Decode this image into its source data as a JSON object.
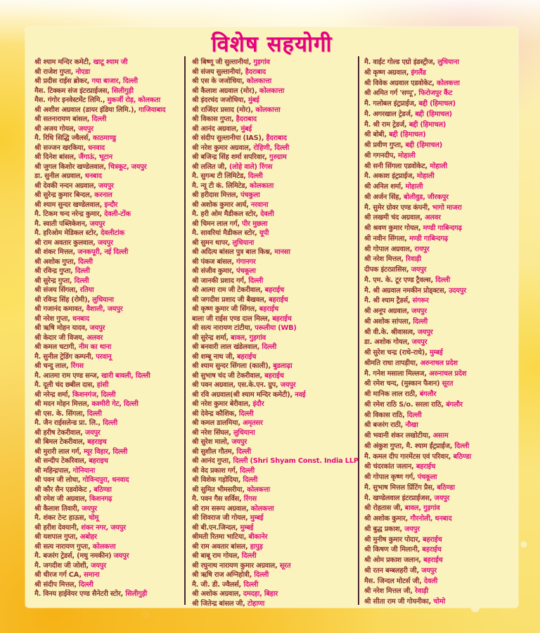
{
  "title": "विशेष सहयोगी",
  "colors": {
    "title_pink": "#e6007e",
    "name_maroon": "#8e3133",
    "place_pink": "#e00f7d",
    "panel_bg": "#fbf3bd",
    "divider": "#4a2430"
  },
  "columns": [
    {
      "entries": [
        {
          "n": "श्री श्याम मन्दिर कमेटी,",
          "p": "खाटू श्याम जी"
        },
        {
          "n": "श्री राजेश गुप्ता,",
          "p": "नोएडा"
        },
        {
          "n": "श्री प्रदीस राईस ब्रोकर,",
          "p": "गया बाजार, दिल्ली"
        },
        {
          "n": "मैस. टिक्कम संज इंटरप्राईजस,",
          "p": "सिलीगुड़ी"
        },
        {
          "n": "मैस. गंगोर इनवेस्टमेंट लिमि.,",
          "p": "मुकर्जी रोड़, कोलकता"
        },
        {
          "n": "श्री अशीश अग्रवाल (डायर इंडिया लिमि.),",
          "p": "गाजियाबाद"
        },
        {
          "n": "श्री सतनारायण बांसल,",
          "p": "दिल्ली"
        },
        {
          "n": "श्री अजय गोयल,",
          "p": "जयपुर"
        },
        {
          "n": "मै. रिधि सिद्धि ज्वैलर्स,",
          "p": "काठमाण्डु"
        },
        {
          "n": "श्री सज्जन खरकिया,",
          "p": "धनवाद"
        },
        {
          "n": "श्री दिनेश बांसल,",
          "p": "जैंगाऊं, भूटान"
        },
        {
          "n": "श्री जुगल किशोर खण्डेलवाल,",
          "p": "चित्रकूट, जयपुर"
        },
        {
          "n": "डा. सुनील अग्रवाल,",
          "p": "धनबाद"
        },
        {
          "n": "श्री देवकी नन्दन अग्रवाल,",
          "p": "जयपुर"
        },
        {
          "n": "श्री सुरेन्द्र कुमार बिन्दल,",
          "p": "करनाल"
        },
        {
          "n": "श्री श्याम सुन्दर खण्डेलवाल,",
          "p": "इन्दौर"
        },
        {
          "n": "मै. टिकम चन्द नरेन्द्र कुमार,",
          "p": "देवली-टोंक"
        },
        {
          "n": "मै. स्वाती पब्लिकेशन,",
          "p": "जयपुर"
        },
        {
          "n": "मै. हरिओम मेडिकल स्टोर,",
          "p": "देवलीटांक"
        },
        {
          "n": "श्री राम अवतार कुलवाल,",
          "p": "जयपुर"
        },
        {
          "n": "श्री शंकर मित्तल,",
          "p": "जनकपूरी, नई दिल्ली"
        },
        {
          "n": "श्री अशोक गुप्ता,",
          "p": "दिल्ली"
        },
        {
          "n": "श्री रविन्द्र गुप्ता,",
          "p": "दिल्ली"
        },
        {
          "n": "श्री सुरेन्द्र गुप्ता,",
          "p": "दिल्ली"
        },
        {
          "n": "श्री संजय सिंगला,",
          "p": "रतिया"
        },
        {
          "n": "श्री रविन्द्र सिंह (रोमी),",
          "p": "लुधियाना"
        },
        {
          "n": "श्री गजानंद कमावत,",
          "p": "वैशाली, जयपुर"
        },
        {
          "n": "श्री नरेश गुप्ता,",
          "p": "धनबाद"
        },
        {
          "n": "श्री ऋषि मोहन यादव,",
          "p": "जयपुर"
        },
        {
          "n": "श्री केदार जी विजय,",
          "p": "अलवर"
        },
        {
          "n": "श्री कमल चटागी,",
          "p": "नीम का थाना"
        },
        {
          "n": "मै. सुनील ट्रेडिंग कम्पनी,",
          "p": "परवानू"
        },
        {
          "n": "श्री चन्दु लाल,",
          "p": "रिंगस"
        },
        {
          "n": "मै. आतमा राम एण्ड सन्ज,",
          "p": "खारी बावली, दिल्ली"
        },
        {
          "n": "मै. दूली चंद छबील दास,",
          "p": "हांसी"
        },
        {
          "n": "श्री नरेन्द्र शर्मा,",
          "p": "किशनगंज, दिल्ली"
        },
        {
          "n": "श्री मदन मोहन मित्तल,",
          "p": "कश्मीरी गेट, दिल्ली"
        },
        {
          "n": "श्री एस. के. सिंगला,",
          "p": "दिल्ली"
        },
        {
          "n": "मै. जैन राईसलेन्ड प्रा. लि.,",
          "p": "दिल्ली"
        },
        {
          "n": "श्री हरीष टेकरीवाल,",
          "p": "जयपुर"
        },
        {
          "n": "श्री बिमल टेकरीवाल,",
          "p": "बहराइच"
        },
        {
          "n": "श्री मुरारी लाल गर्ग,",
          "p": "म्यूर विहार, दिल्ली"
        },
        {
          "n": "श्री सन्दीप टेकरिवाल,",
          "p": "बहराइच"
        },
        {
          "n": "श्री महिन्द्रपाल,",
          "p": "गोनियाना"
        },
        {
          "n": "श्री पवन जी लोधा,",
          "p": "गोविन्दपुरा, धनवाद"
        },
        {
          "n": "श्री कौर सैन एडवोकेट ,",
          "p": "बठिण्डा"
        },
        {
          "n": "श्री रमेश जी अग्रवाल,",
          "p": "किशनगढ़"
        },
        {
          "n": "श्री कैलाश तिवारी,",
          "p": "जयपुर"
        },
        {
          "n": "मै. शंकर टेन्ट हाऊस,",
          "p": "चोमू"
        },
        {
          "n": "श्री हरीश देवयानी,",
          "p": "शंकर नगर, जयपुर"
        },
        {
          "n": "श्री यशपाल गुप्ता,",
          "p": "अबोहर"
        },
        {
          "n": "श्री सत्य नारायण गुप्ता,",
          "p": "कोलकत्ता"
        },
        {
          "n": "मै. बजरंग ट्रेडर्स, (मधु नमकीन)",
          "p": "जयपुर"
        },
        {
          "n": "मै. जगदीश जी जोशी,",
          "p": "जयपुर"
        },
        {
          "n": "श्री धीरज गर्ग CA,",
          "p": "समाना"
        },
        {
          "n": "श्री संदीप मित्तल,",
          "p": "दिल्ली"
        },
        {
          "n": "मै. विनय हाईवेयर एण्ड सैनेटरी स्टोर,",
          "p": "सिलीगुड़ी"
        }
      ]
    },
    {
      "entries": [
        {
          "n": "श्री बिष्णू जी सुल्तानीयां,",
          "p": "गुड़गांव"
        },
        {
          "n": "श्री संजय सुल्तानीयां,",
          "p": "हैदराबाद"
        },
        {
          "n": "श्री एस के जजोधिया,",
          "p": "कोलकात्ता"
        },
        {
          "n": "श्री कैलाश अग्रवाल (मोर),",
          "p": "कोलकात्ता"
        },
        {
          "n": "श्री इंदरचंद जजोधिया,",
          "p": "मुंबई"
        },
        {
          "n": "श्री राजिंदर प्रसाद (मोर),",
          "p": "कोलकात्ता"
        },
        {
          "n": "श्री विकास गुप्ता,",
          "p": "हैदराबाद"
        },
        {
          "n": "श्री आनंद अग्रवाल,",
          "p": "मुंबई"
        },
        {
          "n": "श्री संदीप सुल्तानीया (IAS),",
          "p": "हैदराबाद"
        },
        {
          "n": "श्री नरेश कुमार अग्रवाल,",
          "p": "रोहिणी, दिल्ली"
        },
        {
          "n": "श्री बजिन्द्र सिंह शर्मा सपरिवार,",
          "p": "गुरुग्राम"
        },
        {
          "n": "श्री ललित जी,",
          "p": "(लोहे वाले) रिंगस"
        },
        {
          "n": "मै. सुगन्ध टी लिमिटेड,",
          "p": "दिल्ली"
        },
        {
          "n": "मै. न्यू टी कं. लिमिटेड,",
          "p": "कोलकाता"
        },
        {
          "n": "श्री हरीदास मित्तल,",
          "p": "पंचकुला"
        },
        {
          "n": "श्री अशोक कुमार आर्य,",
          "p": "नरवाना"
        },
        {
          "n": "मै. हरी ओम मैडीकल स्टोर,",
          "p": "देवली"
        },
        {
          "n": "श्री चिमन लाल गर्ग,",
          "p": "पीर मुछला"
        },
        {
          "n": "मै. सावरियां मैडीकल स्टोर,",
          "p": "यूपी"
        },
        {
          "n": "श्री सुमन थापर,",
          "p": "लुधियाना"
        },
        {
          "n": "श्री अदित्य बांसल पुत्र बाल किश्न,",
          "p": "मानसा"
        },
        {
          "n": "श्री पंकज बांसल,",
          "p": "गंगानगर"
        },
        {
          "n": "श्री संजीव कुमार,",
          "p": "पंचकूला"
        },
        {
          "n": "श्री जानकी प्रशाद गर्ग,",
          "p": "दिल्ली"
        },
        {
          "n": "श्री आत्मा राम जी टेकरीवाल,",
          "p": "बहराईच"
        },
        {
          "n": "श्री जगदीश प्रशाद जी बैखवल,",
          "p": "बहराईच"
        },
        {
          "n": "श्री कृष्ण कुमार जी सिंगल,",
          "p": "बहराईच"
        },
        {
          "n": "बाला जी राईस एण्ड दाल मिल्ल,",
          "p": "बहराईच"
        },
        {
          "n": "श्री सत्य नारायण टांटीया,",
          "p": "परूलीया (WB)"
        },
        {
          "n": "श्री सुरेन्द्र शर्मा,",
          "p": "बावल, गुड़गांव"
        },
        {
          "n": "श्री बनवारी लाल खंडेलवाल,",
          "p": "दिल्ली"
        },
        {
          "n": "श्री शम्बू नाथ जी,",
          "p": "बहराईच"
        },
        {
          "n": "श्री श्याम सुन्दर सिंगला (काली),",
          "p": "बुडलाढ़ा"
        },
        {
          "n": "श्री सुभाष चंद जी टेकरीवाल,",
          "p": "बहराईच"
        },
        {
          "n": "श्री पवन अग्रवाल, एस.के.एन. ग्रुप,",
          "p": "जयपुर"
        },
        {
          "n": "श्री रवि अग्रवाल(श्री श्याम मन्दिर कमेटी),",
          "p": "नवई"
        },
        {
          "n": "श्री नरेश कुमार बेरीवाल,",
          "p": "इंदौर"
        },
        {
          "n": "श्री देवेन्द्र कौशिक,",
          "p": "दिल्ली"
        },
        {
          "n": "श्री कमल डालमिया,",
          "p": "अमृतसर"
        },
        {
          "n": "श्री नरेश सिंघल,",
          "p": "लुधियाना"
        },
        {
          "n": "श्री सुरेश मालो,",
          "p": "जयपुर"
        },
        {
          "n": "श्री सुशील गौतम,",
          "p": "दिल्ली"
        },
        {
          "n": "श्री आनंद गुप्ता,",
          "p": "दिल्ली (Shri Shyam Const. India LLP)"
        },
        {
          "n": "श्री वेद प्रकाश गर्ग,",
          "p": "दिल्ली"
        },
        {
          "n": "श्री विशेक गड़ोदिया,",
          "p": "दिल्ली"
        },
        {
          "n": "श्री सुमित भीमसरीया,",
          "p": "कोलकत्ता"
        },
        {
          "n": "मै. पवन गैस सर्विस,",
          "p": "रिंगस"
        },
        {
          "n": "श्री राम सरूप अग्रवाल,",
          "p": "कोलकत्ता"
        },
        {
          "n": "श्री शिवराज जी गोयल,",
          "p": "मुम्बई"
        },
        {
          "n": "श्री बी.एन.जिन्दल,",
          "p": "मुम्बई"
        },
        {
          "n": "श्रीमती रितमा भाटिया,",
          "p": "बीकानेर"
        },
        {
          "n": "श्री राम अवतार बांसल,",
          "p": "हापुड़"
        },
        {
          "n": "श्री बाबू राम गोयल,",
          "p": "दिल्ली"
        },
        {
          "n": "श्री रघुनाथ नारायण कुमार अग्रवाल,",
          "p": "सूरत"
        },
        {
          "n": "श्री ऋषि राज अग्निहोत्री,",
          "p": "दिल्ली"
        },
        {
          "n": "मै. जी. डी. ज्वैलर्स,",
          "p": "दिल्ली"
        },
        {
          "n": "श्री अशोक अग्रवाल,",
          "p": "दमदहा, बिहार"
        },
        {
          "n": "श्री जितेन्द्र बांसल जी,",
          "p": "टोहाणा"
        }
      ]
    },
    {
      "entries": [
        {
          "n": "मै. वाईट गोल्ड एग्रो इंडस्ट्रीज,",
          "p": "लुधियाना"
        },
        {
          "n": "श्री कृष्ण अग्रवाल,",
          "p": "इंगलैंड"
        },
        {
          "n": "श्री विवेक अग्रवाल एडवोकेट,",
          "p": "कोलकत्ता"
        },
        {
          "n": "श्री अमित गर्ग 'सप्पू',",
          "p": "फिरोजपुर कैंट"
        },
        {
          "n": "मै. गलोबल इंट्रप्राईज,",
          "p": "बद्दी (हिमाचल)"
        },
        {
          "n": "मै. अगरखाल ट्रेडर्ज,",
          "p": "बद्दी (हिमाचल)"
        },
        {
          "n": "मै. श्री राम ट्रेडर्ज,",
          "p": "बद्दी (हिमाचल)"
        },
        {
          "n": "श्री बोबी,",
          "p": "बद्दी (हिमाचल)"
        },
        {
          "n": "श्री प्रवीण गुप्ता,",
          "p": "बद्दी (हिमाचल)"
        },
        {
          "n": "श्री गगनदीप,",
          "p": "मोहाली"
        },
        {
          "n": "श्री सनी सिंगला एडवोकेट,",
          "p": "मोहाली"
        },
        {
          "n": "मै. अकाश इंट्रप्राईज,",
          "p": "मोहाली"
        },
        {
          "n": "श्री अनिल शर्मा,",
          "p": "मोहाली"
        },
        {
          "n": "श्री अर्जन सिंह,",
          "p": "बोलीवुड, जीरकपुर"
        },
        {
          "n": "मै. सुमेर ग्रोवर एण्ड कंपनी,",
          "p": "भागो माजरा"
        },
        {
          "n": "श्री लखमी चंद अग्रवाल,",
          "p": "अलवर"
        },
        {
          "n": "श्री श्रवण कुमार गोयल,",
          "p": "मण्डी गाबिन्दगढ़"
        },
        {
          "n": "श्री नवीन सिंगला,",
          "p": "मण्डी गाबिन्दगढ़"
        },
        {
          "n": "श्री गोपाल अग्रवाल,",
          "p": "रायपुर"
        },
        {
          "n": "श्री नरेश मित्तल,",
          "p": "रिवाड़ी"
        },
        {
          "n": "दीपक इंटरप्रासिस,",
          "p": "जयपुर"
        },
        {
          "n": "मै. एम. के. टूर एण्ड ट्रैवल्स,",
          "p": "दिल्ली"
        },
        {
          "n": "मै. श्री अग्रवाल नमकीन प्रोड्क्टस,",
          "p": "उदयपुर"
        },
        {
          "n": "मै. श्री श्याम ट्रैडर्स,",
          "p": "संगरूर"
        },
        {
          "n": "श्री अनूप अग्रवाल,",
          "p": "जयपुर"
        },
        {
          "n": "श्री अशोक सांपला,",
          "p": "दिल्ली"
        },
        {
          "n": "श्री वी.के. श्रीवासत्व,",
          "p": "जयपुर"
        },
        {
          "n": "डा. अशोक गोयल,",
          "p": "जयपुर"
        },
        {
          "n": "श्री सुरेश चन्द्र (राधे-राधे),",
          "p": "मुम्बई"
        },
        {
          "n": "श्रीमति राधा तापड़ीया,",
          "p": "अरुनाचल प्रदेश"
        },
        {
          "n": "मै. गनेश मसाला मिल्लज,",
          "p": "अरुनाचल प्रदेश"
        },
        {
          "n": "श्री रमेश चन्द, (मुस्कान फैशन)",
          "p": "सूरत"
        },
        {
          "n": "श्री मानिक लाल राठी,",
          "p": "बंगलौर"
        },
        {
          "n": "श्री रमेश राठि S/o. सरला राठि,",
          "p": "बंगलौर"
        },
        {
          "n": "श्री विकास राठि,",
          "p": "दिल्ली"
        },
        {
          "n": "श्री बजरंग राठी,",
          "p": "नौखा"
        },
        {
          "n": "श्री भवानी शंकर लखोटीया,",
          "p": "असाम"
        },
        {
          "n": "श्री अंकुश गुप्ता, मै. श्याम ईंट्रप्राईज,",
          "p": "दिल्ली"
        },
        {
          "n": "मै. कमल दीप गारमेंटस एवं परिवार,",
          "p": "बठिण्डा"
        },
        {
          "n": "श्री चंदरकांत जलान,",
          "p": "बहराईच"
        },
        {
          "n": "श्री गोपाल कृष्ण गर्ग,",
          "p": "पंचकूला"
        },
        {
          "n": "मै. सुभाष मित्तल प्रिंटिंग प्रैस,",
          "p": "बठिण्डा"
        },
        {
          "n": "मै. खण्डेलवाल इंटरप्राईजस,",
          "p": "जयपुर"
        },
        {
          "n": "श्री रोहतास जी,",
          "p": "बावल, गुड़गांव"
        },
        {
          "n": "श्री अशोक कुमार,",
          "p": "गौरनोली, धनबाद"
        },
        {
          "n": "श्री बुद्ध प्रकाश,",
          "p": "जयपुर"
        },
        {
          "n": "श्री मुनीष कुमार पोदार,",
          "p": "बहराईच"
        },
        {
          "n": "श्री किषण जी मिलानी,",
          "p": "बहराईच"
        },
        {
          "n": "श्री ओम प्रकाश जलान,",
          "p": "बहराईच"
        },
        {
          "n": "श्री रतन बम्बलहरी जी,",
          "p": "जयपुर"
        },
        {
          "n": "मैस. जिन्दल मोटर्स जी,",
          "p": "देवली"
        },
        {
          "n": "श्री नरेश मित्तल जी,",
          "p": "रेवाड़ी"
        },
        {
          "n": "श्री सीता राम जी गोयनीका,",
          "p": "चोमो"
        }
      ]
    }
  ]
}
